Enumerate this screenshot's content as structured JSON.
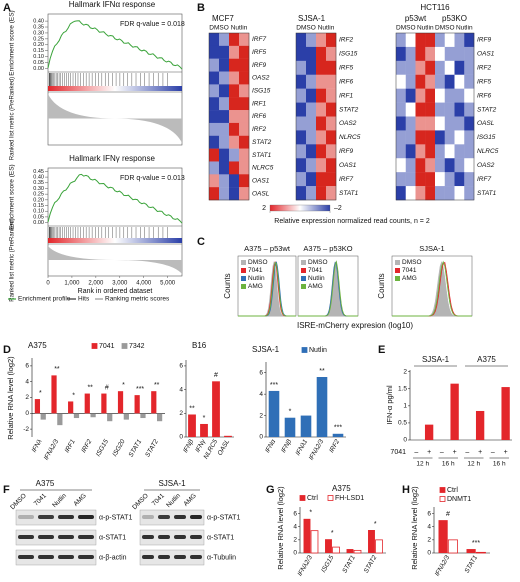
{
  "panel_a": {
    "label": "A",
    "plots": [
      {
        "title": "Hallmark IFNα response",
        "fdr": "FDR q-value = 0.018",
        "ylim": [
          -0.03,
          0.46
        ],
        "yticks": [
          {
            "value": 0,
            "label": "0.00"
          },
          0.05,
          {
            "value": 0.1,
            "label": "0.10"
          },
          0.15,
          {
            "value": 0.2,
            "label": "0.20"
          },
          0.25,
          {
            "value": 0.3,
            "label": "0.30"
          },
          0.35,
          {
            "value": 0.4,
            "label": "0.40"
          }
        ]
      },
      {
        "title": "Hallmark IFNγ response",
        "fdr": "FDR q-value = 0.013",
        "ylim": [
          -0.03,
          0.48
        ],
        "yticks": [
          {
            "value": 0,
            "label": "0.00"
          },
          0.05,
          {
            "value": 0.1,
            "label": "0.10"
          },
          0.15,
          {
            "value": 0.2,
            "label": "0.20"
          },
          0.25,
          {
            "value": 0.3,
            "label": "0.30"
          },
          0.35,
          {
            "value": 0.4,
            "label": "0.40"
          },
          0.45
        ]
      }
    ],
    "es_label": "Enrichment score (ES)",
    "metric_label": "Ranked list metric (PreRanked)",
    "x_label": "Rank in ordered dataset",
    "xlim": [
      0,
      5600
    ],
    "xticks": [
      0,
      {
        "value": 1000,
        "label": "1,000"
      },
      {
        "value": 2000,
        "label": "2,000"
      },
      {
        "value": 3000,
        "label": "3,000"
      },
      {
        "value": 4000,
        "label": "4,000"
      },
      {
        "value": 5000,
        "label": "5,000"
      }
    ],
    "legend": [
      "Enrichment profile",
      "Hits",
      "Ranking metric scores"
    ]
  },
  "panel_b": {
    "label": "B",
    "heatmaps": [
      {
        "name": "MCF7",
        "conditions": [
          "DMSO",
          "Nutlin"
        ],
        "genes": [
          "IRF7",
          "IRF5",
          "IRF9",
          "OAS2",
          "ISG15",
          "IRF1",
          "IRF6",
          "IRF2",
          "STAT2",
          "STAT1",
          "NLRC5",
          "OAS1",
          "OASL"
        ],
        "values": [
          [
            -2,
            -1,
            2,
            1
          ],
          [
            -2,
            -2,
            1,
            2
          ],
          [
            -1,
            -2,
            2,
            2
          ],
          [
            -2,
            -1,
            1,
            2
          ],
          [
            -1,
            -2,
            2,
            1
          ],
          [
            -2,
            -1,
            2,
            2
          ],
          [
            -2,
            -2,
            1,
            1
          ],
          [
            -1,
            -1,
            2,
            1
          ],
          [
            -2,
            -1,
            1,
            2
          ],
          [
            2,
            -2,
            -1,
            1
          ],
          [
            -1,
            -2,
            2,
            1
          ],
          [
            1,
            -1,
            -2,
            2
          ],
          [
            2,
            -1,
            -2,
            1
          ]
        ]
      },
      {
        "name": "SJSA-1",
        "conditions": [
          "DMSO",
          "Nutlin"
        ],
        "genes": [
          "IRF2",
          "ISG15",
          "IRF5",
          "IRF6",
          "IRF1",
          "STAT2",
          "OAS2",
          "NLRC5",
          "IRF9",
          "OAS1",
          "IRF7",
          "STAT1"
        ],
        "values": [
          [
            -2,
            -1,
            1,
            2
          ],
          [
            -2,
            -2,
            2,
            1
          ],
          [
            -1,
            -2,
            2,
            2
          ],
          [
            -2,
            -1,
            1,
            1
          ],
          [
            -1,
            -2,
            2,
            1
          ],
          [
            -2,
            -1,
            1,
            2
          ],
          [
            -1,
            -1,
            2,
            1
          ],
          [
            -2,
            -1,
            1,
            2
          ],
          [
            -1,
            -2,
            2,
            1
          ],
          [
            -2,
            -1,
            1,
            2
          ],
          [
            -1,
            -2,
            2,
            2
          ],
          [
            -2,
            -1,
            2,
            1
          ]
        ]
      },
      {
        "name": "HCT116",
        "groups": [
          "p53wt",
          "p53KO"
        ],
        "conditions": [
          "DMSO",
          "Nutlin",
          "DMSO",
          "Nutlin"
        ],
        "genes": [
          "IRF9",
          "OAS1",
          "IRF2",
          "IRF5",
          "IRF6",
          "STAT2",
          "OASL",
          "ISG15",
          "NLRC5",
          "OAS2",
          "IRF7",
          "STAT1"
        ],
        "values": [
          [
            -1,
            0,
            2,
            2,
            -1,
            0,
            -1,
            -2
          ],
          [
            -2,
            -1,
            2,
            1,
            0,
            -1,
            -1,
            -1
          ],
          [
            -1,
            -1,
            1,
            2,
            -1,
            0,
            -2,
            -1
          ],
          [
            0,
            -1,
            2,
            1,
            -1,
            -2,
            0,
            -1
          ],
          [
            -1,
            -2,
            1,
            2,
            0,
            -1,
            -1,
            0
          ],
          [
            -1,
            0,
            2,
            2,
            -1,
            -1,
            -2,
            -1
          ],
          [
            -2,
            -1,
            1,
            1,
            0,
            -1,
            -1,
            -2
          ],
          [
            -1,
            -1,
            2,
            2,
            -2,
            -1,
            0,
            -1
          ],
          [
            -1,
            -2,
            1,
            2,
            -1,
            0,
            -1,
            -1
          ],
          [
            0,
            -1,
            2,
            1,
            -1,
            -2,
            -1,
            0
          ],
          [
            -1,
            -1,
            2,
            2,
            0,
            -1,
            -2,
            -1
          ],
          [
            -2,
            0,
            1,
            2,
            -1,
            -1,
            0,
            -1
          ]
        ]
      }
    ],
    "colorbar_ticks": [
      2,
      {
        "value": -2,
        "label": "–2"
      }
    ],
    "caption": "Relative expression normalized read counts, n = 2"
  },
  "panel_c": {
    "label": "C",
    "y_label": "Counts",
    "x_label": "ISRE-mCherry expresion (log10)",
    "plots": [
      {
        "title": "A375 – p53wt",
        "series": [
          {
            "name": "DMSO",
            "color": "#b4b4b4"
          },
          {
            "name": "7041",
            "color": "#e3262b"
          },
          {
            "name": "Nutlin",
            "color": "#2f6fb7"
          },
          {
            "name": "AMG",
            "color": "#6cb33f"
          }
        ]
      },
      {
        "title": "A375 – p53KO",
        "series": [
          {
            "name": "DMSO",
            "color": "#b4b4b4"
          },
          {
            "name": "7041",
            "color": "#e3262b"
          },
          {
            "name": "Nutlin",
            "color": "#2f6fb7"
          },
          {
            "name": "AMG",
            "color": "#6cb33f"
          }
        ]
      },
      {
        "title": "SJSA-1",
        "series": [
          {
            "name": "DMSO",
            "color": "#b4b4b4"
          },
          {
            "name": "7041",
            "color": "#e3262b"
          },
          {
            "name": "AMG",
            "color": "#6cb33f"
          }
        ]
      }
    ]
  },
  "panel_f": {
    "label": "F",
    "blots": [
      {
        "cell_line": "A375",
        "lanes": [
          "DMSO",
          "7041",
          "Nutlin",
          "AMG"
        ],
        "antibodies": [
          "α-p-STAT1",
          "α-STAT1",
          "α-β-actin"
        ]
      },
      {
        "cell_line": "SJSA-1",
        "lanes": [
          "DMSO",
          "7041",
          "Nutlin",
          "AMG"
        ],
        "antibodies": [
          "α-p-STAT1",
          "α-STAT1",
          "α-Tubulin"
        ]
      }
    ]
  },
  "chart_data": [
    {
      "type": "bar",
      "panel": "D",
      "title": "A375",
      "y_label": "Relative RNA level (log2)",
      "categories": [
        "IFNλ",
        "IFNλ2/3",
        "IRF1",
        "IRF2",
        "ISG15",
        "ISG20",
        "STAT1",
        "STAT2"
      ],
      "series": [
        {
          "name": "7041",
          "color": "#e3262b",
          "values": [
            1.8,
            4.8,
            1.5,
            2.5,
            2.5,
            2.8,
            2.3,
            2.8
          ]
        },
        {
          "name": "7342",
          "color": "#9a9a9a",
          "values": [
            -0.8,
            -1.5,
            -0.6,
            -0.5,
            -1.0,
            -0.8,
            -0.6,
            -1.0
          ]
        }
      ],
      "annotations": [
        "*",
        "**",
        "*",
        "**",
        "#",
        "*",
        "***",
        "**"
      ],
      "ylim": [
        -3,
        7
      ],
      "yticks": [
        -2,
        0,
        2,
        4,
        6
      ]
    },
    {
      "type": "bar",
      "title": "B16",
      "categories": [
        "IFNβ",
        "IFNγ",
        "NLRC5",
        "OASL"
      ],
      "values": [
        1.9,
        1.1,
        4.7,
        0.1
      ],
      "color": "#e3262b",
      "annotations": [
        "**",
        "*",
        "#",
        null
      ],
      "ylim": [
        0,
        6.5
      ],
      "yticks": [
        0,
        2,
        4,
        6
      ]
    },
    {
      "type": "bar",
      "title": "SJSA-1",
      "categories": [
        "IFNα",
        "IFNβ",
        "IFNλ1",
        "IFNλ2/3",
        "IRF2"
      ],
      "series": [
        {
          "name": "Nutlin",
          "color": "#2f6fb7",
          "values": [
            4.3,
            1.8,
            2.0,
            5.6,
            0.3
          ]
        }
      ],
      "annotations": [
        "***",
        "*",
        null,
        "**",
        "***"
      ],
      "ylim": [
        0,
        7
      ],
      "yticks": [
        0,
        2,
        4,
        6
      ]
    },
    {
      "type": "bar",
      "panel": "E",
      "y_label": "IFN-α pg/ml",
      "categories": [
        "–",
        "+",
        "–",
        "+",
        "–",
        "+",
        "–",
        "+"
      ],
      "category_label": "7041",
      "groups": [
        "12 h",
        "16 h",
        "12 h",
        "16 h"
      ],
      "supergroups": [
        "SJSA-1",
        "A375"
      ],
      "values": [
        0,
        0.45,
        0,
        1.65,
        0,
        0.85,
        0,
        1.55
      ],
      "color": "#e3262b",
      "ylim": [
        0,
        2.05
      ],
      "yticks": [
        0,
        0.5,
        1,
        1.5,
        2
      ]
    },
    {
      "type": "bar",
      "panel": "G",
      "title": "A375",
      "y_label": "Relative RNA level (log2)",
      "categories": [
        "IFNλ2/3",
        "ISG15",
        "STAT1",
        "STAT2"
      ],
      "series": [
        {
          "name": "Ctrl",
          "color": "#e3262b",
          "filled": true,
          "values": [
            5.2,
            2.1,
            0.6,
            3.5
          ]
        },
        {
          "name": "FH-LSD1",
          "color": "#e3262b",
          "filled": false,
          "values": [
            3.4,
            0.9,
            0.4,
            2.0
          ]
        }
      ],
      "annotations": [
        "*",
        "*",
        null,
        "*"
      ],
      "ylim": [
        0,
        7
      ],
      "yticks": [
        0,
        2,
        4,
        6
      ]
    },
    {
      "type": "bar",
      "panel": "H",
      "y_label": "Relative RNA level (log2)",
      "categories": [
        "IFNλ2/3",
        "STAT1"
      ],
      "series": [
        {
          "name": "Ctrl",
          "color": "#e3262b",
          "filled": true,
          "values": [
            5.0,
            0.6
          ]
        },
        {
          "name": "DNMT1",
          "color": "#e3262b",
          "filled": false,
          "values": [
            2.0,
            0.1
          ]
        }
      ],
      "annotations": [
        "#",
        "***"
      ],
      "ylim": [
        0,
        7
      ],
      "yticks": [
        0,
        2,
        4,
        6
      ]
    }
  ]
}
